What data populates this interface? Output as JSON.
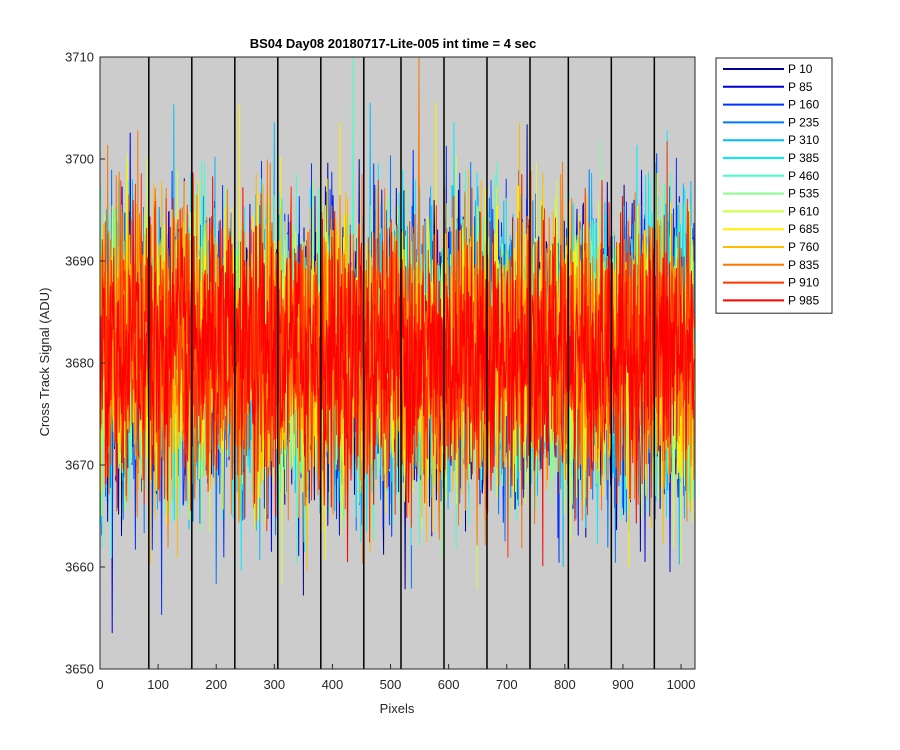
{
  "chart_data": {
    "type": "line",
    "title": "BS04 Day08 20180717-Lite-005 int time = 4 sec",
    "xlabel": "Pixels",
    "ylabel": "Cross Track Signal (ADU)",
    "xlim": [
      0,
      1024
    ],
    "ylim": [
      3650,
      3710
    ],
    "xticks": [
      0,
      100,
      200,
      300,
      400,
      500,
      600,
      700,
      800,
      900,
      1000
    ],
    "yticks": [
      3650,
      3660,
      3670,
      3680,
      3690,
      3700,
      3710
    ],
    "axes_background": "#cccccc",
    "vertical_lines_x": [
      84,
      158,
      232,
      306,
      380,
      454,
      518,
      592,
      666,
      740,
      806,
      880,
      954
    ],
    "grid": false,
    "legend_position": "outside-top-right",
    "noise": {
      "center": 3681,
      "sigma": 6.5,
      "min": 3652,
      "max": 3710,
      "points_per_series": 1024
    },
    "series": [
      {
        "name": "P 10",
        "color": "#00008f"
      },
      {
        "name": "P 85",
        "color": "#0000d6"
      },
      {
        "name": "P 160",
        "color": "#0033ff"
      },
      {
        "name": "P 235",
        "color": "#0077ff"
      },
      {
        "name": "P 310",
        "color": "#00bbff"
      },
      {
        "name": "P 385",
        "color": "#00eeff"
      },
      {
        "name": "P 460",
        "color": "#44ffcc"
      },
      {
        "name": "P 535",
        "color": "#88ff88"
      },
      {
        "name": "P 610",
        "color": "#ccff44"
      },
      {
        "name": "P 685",
        "color": "#ffee00"
      },
      {
        "name": "P 760",
        "color": "#ffbb00"
      },
      {
        "name": "P 835",
        "color": "#ff7700"
      },
      {
        "name": "P 910",
        "color": "#ff3300"
      },
      {
        "name": "P 985",
        "color": "#ff0000"
      }
    ]
  }
}
